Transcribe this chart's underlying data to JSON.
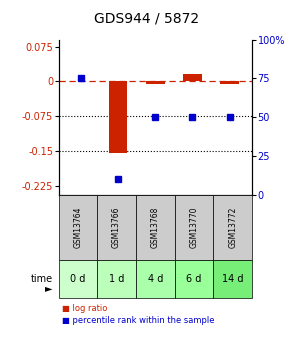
{
  "title": "GDS944 / 5872",
  "samples": [
    "GSM13764",
    "GSM13766",
    "GSM13768",
    "GSM13770",
    "GSM13772"
  ],
  "time_labels": [
    "0 d",
    "1 d",
    "4 d",
    "6 d",
    "14 d"
  ],
  "log_ratio": [
    0.0,
    -0.155,
    -0.005,
    0.015,
    -0.005
  ],
  "percentile_rank": [
    75,
    10,
    50,
    50,
    50
  ],
  "log_ratio_color": "#cc2200",
  "percentile_color": "#0000cc",
  "ylim_left": [
    -0.245,
    0.09
  ],
  "ylim_right": [
    0,
    100
  ],
  "yticks_left": [
    0.075,
    0,
    -0.075,
    -0.15,
    -0.225
  ],
  "yticks_right": [
    100,
    75,
    50,
    25,
    0
  ],
  "bar_width": 0.5,
  "sample_bg_color": "#cccccc",
  "time_bg_colors": [
    "#ccffcc",
    "#bbffbb",
    "#aaffaa",
    "#99ff99",
    "#77ee77"
  ],
  "legend_lr_label": "log ratio",
  "legend_pr_label": "percentile rank within the sample",
  "title_fontsize": 10,
  "tick_fontsize": 7
}
